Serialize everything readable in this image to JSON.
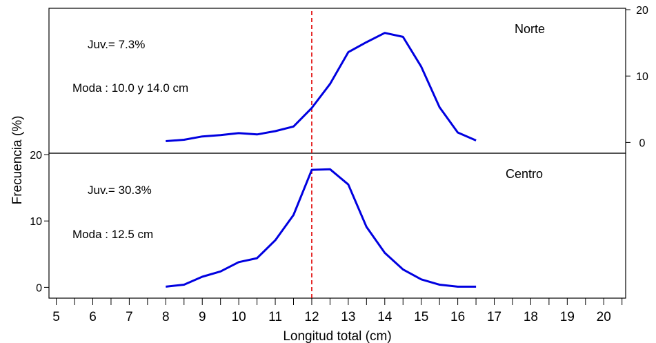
{
  "figure": {
    "xlabel": "Longitud total (cm)",
    "ylabel": "Frecuencia (%)",
    "reference_line": {
      "x": 12,
      "color": "#e00000",
      "style": "dashed"
    },
    "line_color": "#0000e0"
  },
  "chart_data": [
    {
      "type": "line",
      "panel": "top",
      "y_axis_side": "right",
      "xlim": [
        4.8,
        20.6
      ],
      "ylim": [
        -1,
        20
      ],
      "yticks": [
        0,
        10,
        20
      ],
      "xticks": [],
      "region": "Norte",
      "annotations": [
        "Juv.= 7.3%",
        "Moda : 10.0 y 14.0 cm"
      ],
      "x": [
        8,
        8.5,
        9,
        9.5,
        10,
        10.5,
        11,
        11.5,
        12,
        12.5,
        13,
        13.5,
        14,
        14.5,
        15,
        15.5,
        16,
        16.5
      ],
      "y": [
        0.2,
        0.4,
        0.9,
        1.1,
        1.4,
        1.2,
        1.7,
        2.4,
        5.2,
        8.8,
        13.6,
        15.1,
        16.5,
        15.9,
        11.4,
        5.3,
        1.5,
        0.3
      ]
    },
    {
      "type": "line",
      "panel": "bottom",
      "y_axis_side": "left",
      "xlim": [
        4.8,
        20.6
      ],
      "ylim": [
        -1,
        20
      ],
      "yticks": [
        0,
        10,
        20
      ],
      "xticks": [
        5,
        6,
        7,
        8,
        9,
        10,
        11,
        12,
        13,
        14,
        15,
        16,
        17,
        18,
        19,
        20
      ],
      "region": "Centro",
      "annotations": [
        "Juv.= 30.3%",
        "Moda : 12.5 cm"
      ],
      "x": [
        8,
        8.5,
        9,
        9.5,
        10,
        10.5,
        11,
        11.5,
        12,
        12.5,
        13,
        13.5,
        14,
        14.5,
        15,
        15.5,
        16,
        16.5
      ],
      "y": [
        0.1,
        0.4,
        1.6,
        2.4,
        3.8,
        4.4,
        7.1,
        10.9,
        17.7,
        17.8,
        15.5,
        9.1,
        5.2,
        2.7,
        1.2,
        0.4,
        0.1,
        0.1
      ]
    }
  ]
}
